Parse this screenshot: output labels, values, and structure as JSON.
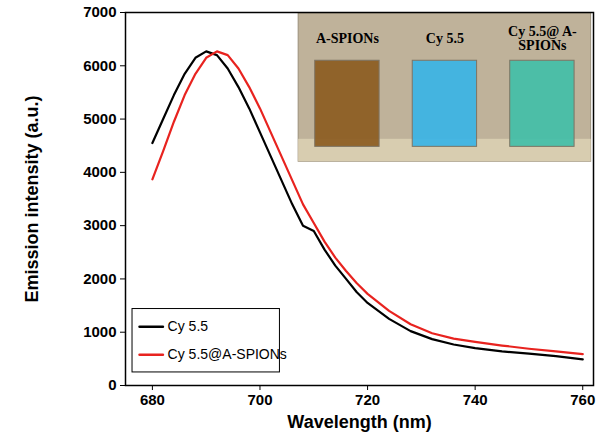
{
  "chart_data": {
    "type": "line",
    "x_label": "Wavelength (nm)",
    "y_label": "Emission intensity (a.u.)",
    "xlim": [
      675,
      762
    ],
    "xticks": [
      680,
      700,
      720,
      740,
      760
    ],
    "ylim": [
      0,
      7000
    ],
    "yticks": [
      0,
      1000,
      2000,
      3000,
      4000,
      5000,
      6000,
      7000
    ],
    "legend": "lower left",
    "series": [
      {
        "name": "Cy 5.5",
        "color": "#000000",
        "x": [
          680,
          682,
          684,
          686,
          688,
          690,
          692,
          694,
          696,
          698,
          700,
          702,
          704,
          706,
          708,
          710,
          712,
          714,
          716,
          718,
          720,
          724,
          728,
          732,
          736,
          740,
          745,
          750,
          755,
          760
        ],
        "values": [
          4550,
          5000,
          5450,
          5850,
          6150,
          6270,
          6200,
          5950,
          5600,
          5200,
          4750,
          4300,
          3850,
          3400,
          3000,
          2900,
          2550,
          2250,
          2000,
          1750,
          1550,
          1250,
          1020,
          870,
          770,
          700,
          640,
          600,
          550,
          490
        ]
      },
      {
        "name": "Cy 5.5@A-SPIONs",
        "color": "#e8231f",
        "x": [
          680,
          682,
          684,
          686,
          688,
          690,
          692,
          694,
          696,
          698,
          700,
          702,
          704,
          706,
          708,
          710,
          712,
          714,
          716,
          718,
          720,
          724,
          728,
          732,
          736,
          740,
          745,
          750,
          755,
          760
        ],
        "values": [
          3870,
          4400,
          4950,
          5450,
          5850,
          6150,
          6270,
          6200,
          5950,
          5600,
          5200,
          4750,
          4300,
          3850,
          3400,
          3050,
          2700,
          2400,
          2150,
          1920,
          1720,
          1400,
          1150,
          980,
          880,
          820,
          750,
          690,
          640,
          590
        ]
      }
    ],
    "annotations": [
      "A-SPIONs",
      "Cy 5.5",
      "Cy 5.5@ A-SPIONs"
    ]
  }
}
